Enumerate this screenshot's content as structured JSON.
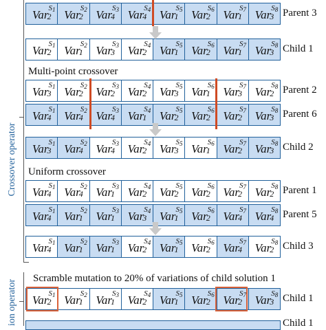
{
  "side_labels": {
    "crossover": "Crossover operator",
    "mutation": "ion operator"
  },
  "headings": {
    "multi_point": "Multi-point crossover",
    "uniform": "Uniform crossover",
    "scramble": "Scramble mutation to 20% of variations of child solution 1"
  },
  "rows": [
    {
      "label": "Parent 3",
      "cells": [
        [
          "2",
          "1",
          "blue"
        ],
        [
          "2",
          "2",
          "blue"
        ],
        [
          "4",
          "3",
          "blue"
        ],
        [
          "4",
          "4",
          "blue"
        ],
        [
          "1",
          "5",
          "blue"
        ],
        [
          "2",
          "6",
          "blue"
        ],
        [
          "1",
          "7",
          "blue"
        ],
        [
          "3",
          "8",
          "blue"
        ]
      ]
    },
    {
      "label": "Child 1",
      "cells": [
        [
          "2",
          "1",
          "white"
        ],
        [
          "1",
          "2",
          "white"
        ],
        [
          "3",
          "3",
          "white"
        ],
        [
          "2",
          "4",
          "white"
        ],
        [
          "1",
          "5",
          "blue"
        ],
        [
          "2",
          "6",
          "blue"
        ],
        [
          "1",
          "7",
          "blue"
        ],
        [
          "3",
          "8",
          "blue"
        ]
      ]
    },
    {
      "label": "Parent 2",
      "cells": [
        [
          "3",
          "1",
          "white"
        ],
        [
          "2",
          "2",
          "white"
        ],
        [
          "2",
          "3",
          "white"
        ],
        [
          "2",
          "4",
          "white"
        ],
        [
          "3",
          "5",
          "white"
        ],
        [
          "1",
          "6",
          "white"
        ],
        [
          "3",
          "7",
          "white"
        ],
        [
          "2",
          "8",
          "white"
        ]
      ]
    },
    {
      "label": "Parent 6",
      "cells": [
        [
          "4",
          "1",
          "blue"
        ],
        [
          "4",
          "2",
          "blue"
        ],
        [
          "4",
          "3",
          "blue"
        ],
        [
          "1",
          "4",
          "blue"
        ],
        [
          "2",
          "5",
          "blue"
        ],
        [
          "2",
          "6",
          "blue"
        ],
        [
          "2",
          "7",
          "blue"
        ],
        [
          "3",
          "8",
          "blue"
        ]
      ]
    },
    {
      "label": "Child 2",
      "cells": [
        [
          "3",
          "1",
          "blue"
        ],
        [
          "4",
          "2",
          "blue"
        ],
        [
          "4",
          "3",
          "white"
        ],
        [
          "2",
          "4",
          "white"
        ],
        [
          "3",
          "5",
          "white"
        ],
        [
          "1",
          "6",
          "white"
        ],
        [
          "2",
          "7",
          "blue"
        ],
        [
          "3",
          "8",
          "blue"
        ]
      ]
    },
    {
      "label": "Parent 1",
      "cells": [
        [
          "4",
          "1",
          "white"
        ],
        [
          "4",
          "2",
          "white"
        ],
        [
          "1",
          "3",
          "white"
        ],
        [
          "2",
          "4",
          "white"
        ],
        [
          "2",
          "5",
          "white"
        ],
        [
          "2",
          "6",
          "white"
        ],
        [
          "2",
          "7",
          "white"
        ],
        [
          "2",
          "8",
          "white"
        ]
      ]
    },
    {
      "label": "Parent 5",
      "cells": [
        [
          "4",
          "1",
          "blue"
        ],
        [
          "1",
          "2",
          "blue"
        ],
        [
          "1",
          "3",
          "blue"
        ],
        [
          "3",
          "4",
          "blue"
        ],
        [
          "1",
          "5",
          "blue"
        ],
        [
          "2",
          "6",
          "blue"
        ],
        [
          "4",
          "7",
          "blue"
        ],
        [
          "4",
          "8",
          "blue"
        ]
      ]
    },
    {
      "label": "Child 3",
      "cells": [
        [
          "4",
          "1",
          "white"
        ],
        [
          "1",
          "2",
          "blue"
        ],
        [
          "1",
          "3",
          "blue"
        ],
        [
          "2",
          "4",
          "white"
        ],
        [
          "1",
          "5",
          "blue"
        ],
        [
          "2",
          "6",
          "white"
        ],
        [
          "4",
          "7",
          "blue"
        ],
        [
          "2",
          "8",
          "white"
        ]
      ]
    },
    {
      "label": "Child 1",
      "cells": [
        [
          "2",
          "1",
          "white"
        ],
        [
          "1",
          "2",
          "white"
        ],
        [
          "1",
          "3",
          "white"
        ],
        [
          "2",
          "4",
          "white"
        ],
        [
          "1",
          "5",
          "blue"
        ],
        [
          "2",
          "6",
          "blue"
        ],
        [
          "2",
          "7",
          "blue"
        ],
        [
          "3",
          "8",
          "blue"
        ]
      ]
    }
  ],
  "var_text": "Var",
  "bottom_label": "Child 1"
}
